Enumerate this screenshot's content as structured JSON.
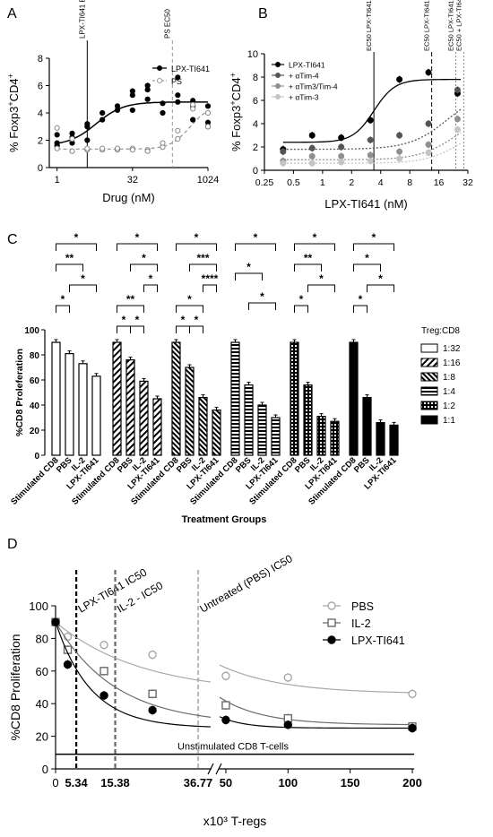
{
  "panel_labels": {
    "a": "A",
    "b": "B",
    "c": "C",
    "d": "D"
  },
  "chart_data": [
    {
      "panel": "A",
      "type": "scatter",
      "xlabel": "Drug (nM)",
      "ylabel": "% Foxp3+CD4+",
      "xscale": "log2",
      "xlim": [
        0.7,
        1024
      ],
      "ylim": [
        0,
        8
      ],
      "xticks": [
        "1",
        "32",
        "1024"
      ],
      "yticks": [
        "0",
        "2",
        "4",
        "6",
        "8"
      ],
      "vlines": [
        {
          "label": "LPX-TI641 EC50",
          "x": 4,
          "style": "solid"
        },
        {
          "label": "PS EC50",
          "x": 200,
          "style": "dashed"
        }
      ],
      "legend": "top-right",
      "series": [
        {
          "name": "LPX-TI641",
          "color": "#000000",
          "points": [
            [
              1,
              1.6
            ],
            [
              1,
              1.8
            ],
            [
              1,
              2.4
            ],
            [
              2,
              1.8
            ],
            [
              2,
              2.2
            ],
            [
              2,
              2.5
            ],
            [
              4,
              2.0
            ],
            [
              4,
              3.0
            ],
            [
              4,
              3.2
            ],
            [
              8,
              3.5
            ],
            [
              8,
              4.0
            ],
            [
              16,
              4.2
            ],
            [
              16,
              4.5
            ],
            [
              32,
              5.3
            ],
            [
              32,
              4.2
            ],
            [
              32,
              5.6
            ],
            [
              64,
              5.0
            ],
            [
              64,
              5.7
            ],
            [
              64,
              6.0
            ],
            [
              128,
              4.0
            ],
            [
              128,
              4.7
            ],
            [
              256,
              5.3
            ],
            [
              256,
              4.8
            ],
            [
              256,
              6.6
            ],
            [
              512,
              4.5
            ],
            [
              512,
              3.5
            ],
            [
              512,
              4.9
            ],
            [
              1024,
              3.0
            ],
            [
              1024,
              4.5
            ],
            [
              1024,
              3.3
            ]
          ]
        },
        {
          "name": "PS",
          "color": "#9a9a9a",
          "points": [
            [
              1,
              1.4
            ],
            [
              1,
              2.9
            ],
            [
              2,
              1.2
            ],
            [
              2,
              2.1
            ],
            [
              4,
              1.3
            ],
            [
              4,
              1.4
            ],
            [
              8,
              1.3
            ],
            [
              8,
              1.4
            ],
            [
              16,
              1.3
            ],
            [
              16,
              1.4
            ],
            [
              32,
              1.4
            ],
            [
              32,
              1.3
            ],
            [
              64,
              1.3
            ],
            [
              64,
              1.2
            ],
            [
              128,
              1.5
            ],
            [
              128,
              1.8
            ],
            [
              256,
              2.7
            ],
            [
              256,
              2.1
            ],
            [
              512,
              4.6
            ],
            [
              512,
              4.3
            ],
            [
              1024,
              4.0
            ],
            [
              1024,
              3.0
            ]
          ]
        }
      ]
    },
    {
      "panel": "B",
      "type": "scatter",
      "xlabel": "LPX-TI641 (nM)",
      "ylabel": "% Foxp3+CD4+",
      "xscale": "log2",
      "xlim": [
        0.25,
        32
      ],
      "ylim": [
        0,
        10
      ],
      "xticks": [
        "0.25",
        "0.5",
        "1",
        "2",
        "4",
        "8",
        "16",
        "32"
      ],
      "yticks": [
        "0",
        "2",
        "4",
        "6",
        "8",
        "10"
      ],
      "vlines": [
        {
          "label": "EC50 LPX-TI641",
          "x": 3.4,
          "style": "solid"
        },
        {
          "label": "EC50 LPX-TI641 + αTim4",
          "x": 13.5,
          "style": "dashed"
        },
        {
          "label": "EC50 LPX-TI641 + αTim3/αTim4",
          "x": 24,
          "style": "dotted"
        },
        {
          "label": "EC50 + LPX-TI641 + αTim3",
          "x": 29,
          "style": "dotted"
        }
      ],
      "legend": "top-left",
      "series": [
        {
          "name": "LPX-TI641",
          "color": "#000000",
          "points": [
            [
              0.39,
              1.8
            ],
            [
              0.78,
              3.0
            ],
            [
              1.56,
              2.8
            ],
            [
              3.13,
              4.3
            ],
            [
              6.25,
              7.8
            ],
            [
              12.5,
              8.4
            ],
            [
              25,
              6.6
            ]
          ]
        },
        {
          "name": "+ αTim-4",
          "color": "#555555",
          "points": [
            [
              0.39,
              1.6
            ],
            [
              0.78,
              1.9
            ],
            [
              1.56,
              2.0
            ],
            [
              3.13,
              2.6
            ],
            [
              6.25,
              3.0
            ],
            [
              12.5,
              4.0
            ],
            [
              25,
              6.9
            ]
          ]
        },
        {
          "name": "+ αTim3/Tim-4",
          "color": "#8f8f8f",
          "points": [
            [
              0.39,
              0.8
            ],
            [
              0.78,
              1.2
            ],
            [
              1.56,
              1.2
            ],
            [
              3.13,
              1.3
            ],
            [
              6.25,
              1.6
            ],
            [
              12.5,
              2.2
            ],
            [
              25,
              4.4
            ]
          ]
        },
        {
          "name": "+ αTim-3",
          "color": "#c4c4c4",
          "points": [
            [
              0.39,
              0.6
            ],
            [
              0.78,
              0.6
            ],
            [
              1.56,
              0.7
            ],
            [
              3.13,
              0.8
            ],
            [
              6.25,
              1.0
            ],
            [
              12.5,
              1.5
            ],
            [
              25,
              3.5
            ]
          ]
        }
      ]
    },
    {
      "panel": "C",
      "type": "bar",
      "ylabel": "%CD8 Proleferation",
      "xlabel": "Treatment Groups",
      "ylim": [
        0,
        100
      ],
      "yticks": [
        "0",
        "20",
        "40",
        "60",
        "80",
        "100"
      ],
      "categories": [
        "Stimulated CD8",
        "PBS",
        "IL-2",
        "LPX-TI641"
      ],
      "legend_title": "Treg:CD8",
      "groups": [
        {
          "name": "1:32",
          "values": [
            90,
            81,
            73,
            63
          ],
          "sig": [
            "*",
            "**",
            "*",
            "*"
          ]
        },
        {
          "name": "1:16",
          "values": [
            90,
            76,
            59,
            45
          ],
          "sig": [
            "*",
            "*",
            "*",
            "**",
            "*",
            "*"
          ]
        },
        {
          "name": "1:8",
          "values": [
            90,
            70,
            46,
            36
          ],
          "sig": [
            "*",
            "***",
            "****",
            "*",
            "*",
            "*"
          ]
        },
        {
          "name": "1:4",
          "values": [
            90,
            56,
            40,
            30
          ],
          "sig": [
            "*",
            "*",
            "*"
          ]
        },
        {
          "name": "1:2",
          "values": [
            90,
            56,
            31,
            27
          ],
          "sig": [
            "*",
            "**",
            "*",
            "*"
          ]
        },
        {
          "name": "1:1",
          "values": [
            90,
            46,
            26,
            24
          ],
          "sig": [
            "*",
            "*",
            "*",
            "*"
          ]
        }
      ]
    },
    {
      "panel": "D",
      "type": "line",
      "xlabel": "x10³ T-regs",
      "ylabel": "%CD8 Proliferation",
      "ylim": [
        0,
        100
      ],
      "yticks": [
        "0",
        "20",
        "40",
        "60",
        "80",
        "100"
      ],
      "xticks": [
        "0",
        "50",
        "100",
        "150",
        "200"
      ],
      "x_break": [
        40,
        45
      ],
      "hline": {
        "label": "Unstimulated CD8 T-cells",
        "y": 9
      },
      "vlines": [
        {
          "label": "LPX-TI641  IC50",
          "x": 5.34,
          "value_label": "5.34",
          "color": "#000000"
        },
        {
          "label": "IL-2 - IC50",
          "x": 15.38,
          "value_label": "15.38",
          "color": "#666666"
        },
        {
          "label": "Untreated (PBS) IC50",
          "x": 36.77,
          "value_label": "36.77",
          "color": "#bbbbbb"
        }
      ],
      "legend": "top-right",
      "series": [
        {
          "name": "PBS",
          "color": "#a8a8a8",
          "marker": "circle-open",
          "x": [
            0,
            3.125,
            12.5,
            25,
            50,
            100,
            200
          ],
          "y": [
            90,
            81,
            76,
            70,
            57,
            56,
            46
          ]
        },
        {
          "name": "IL-2",
          "color": "#6b6b6b",
          "marker": "square-open",
          "x": [
            0,
            3.125,
            12.5,
            25,
            50,
            100,
            200
          ],
          "y": [
            90,
            73,
            60,
            46,
            39,
            31,
            26
          ]
        },
        {
          "name": "LPX-TI641",
          "color": "#000000",
          "marker": "circle-filled",
          "x": [
            0,
            3.125,
            12.5,
            25,
            50,
            100,
            200
          ],
          "y": [
            90,
            64,
            45,
            36,
            30,
            27,
            25
          ]
        }
      ]
    }
  ]
}
